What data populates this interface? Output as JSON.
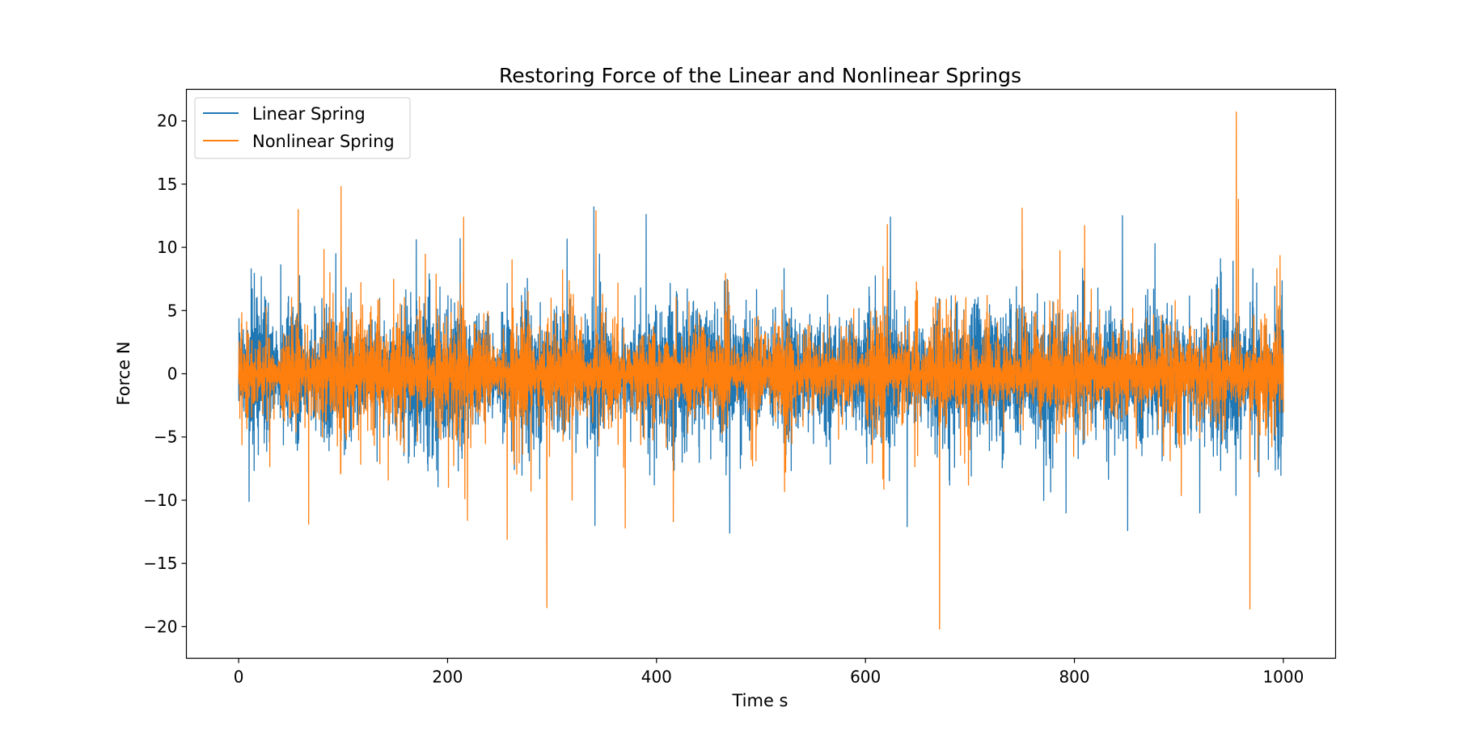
{
  "chart_data": {
    "type": "line",
    "title": "Restoring Force of the Linear and Nonlinear Springs",
    "xlabel": "Time s",
    "ylabel": "Force N",
    "xlim": [
      -50,
      1050
    ],
    "ylim": [
      -22.5,
      22.5
    ],
    "x_ticks": [
      0,
      200,
      400,
      600,
      800,
      1000
    ],
    "x_tick_labels": [
      "0",
      "200",
      "400",
      "600",
      "800",
      "1000"
    ],
    "y_ticks": [
      -20,
      -15,
      -10,
      -5,
      0,
      5,
      10,
      15,
      20
    ],
    "y_tick_labels": [
      "−20",
      "−15",
      "−10",
      "−5",
      "0",
      "5",
      "10",
      "15",
      "20"
    ],
    "grid": false,
    "legend_position": "top-left",
    "x_range": [
      0,
      1000
    ],
    "series": [
      {
        "name": "Linear Spring",
        "color": "#1f77b4",
        "typical_amplitude": 4,
        "peaks": [
          {
            "x": 10,
            "y": -10.1
          },
          {
            "x": 12,
            "y": 8.3
          },
          {
            "x": 93,
            "y": 9.5
          },
          {
            "x": 170,
            "y": 10.6
          },
          {
            "x": 212,
            "y": 10.7
          },
          {
            "x": 340,
            "y": 13.2
          },
          {
            "x": 341,
            "y": -12.0
          },
          {
            "x": 390,
            "y": 12.6
          },
          {
            "x": 470,
            "y": -12.6
          },
          {
            "x": 624,
            "y": 12.4
          },
          {
            "x": 640,
            "y": -12.1
          },
          {
            "x": 792,
            "y": -11.0
          },
          {
            "x": 846,
            "y": 12.5
          },
          {
            "x": 851,
            "y": -12.4
          },
          {
            "x": 920,
            "y": -11.0
          }
        ]
      },
      {
        "name": "Nonlinear Spring",
        "color": "#ff7f0e",
        "typical_amplitude": 3,
        "peaks": [
          {
            "x": 57,
            "y": 13.0
          },
          {
            "x": 67,
            "y": -11.9
          },
          {
            "x": 98,
            "y": 14.8
          },
          {
            "x": 219,
            "y": -11.6
          },
          {
            "x": 257,
            "y": -13.1
          },
          {
            "x": 295,
            "y": -18.5
          },
          {
            "x": 342,
            "y": 12.9
          },
          {
            "x": 370,
            "y": -12.2
          },
          {
            "x": 416,
            "y": -11.7
          },
          {
            "x": 621,
            "y": 11.8
          },
          {
            "x": 671,
            "y": -20.2
          },
          {
            "x": 750,
            "y": 13.1
          },
          {
            "x": 955,
            "y": 20.7
          },
          {
            "x": 957,
            "y": 13.8
          },
          {
            "x": 968,
            "y": -18.6
          }
        ]
      }
    ]
  }
}
